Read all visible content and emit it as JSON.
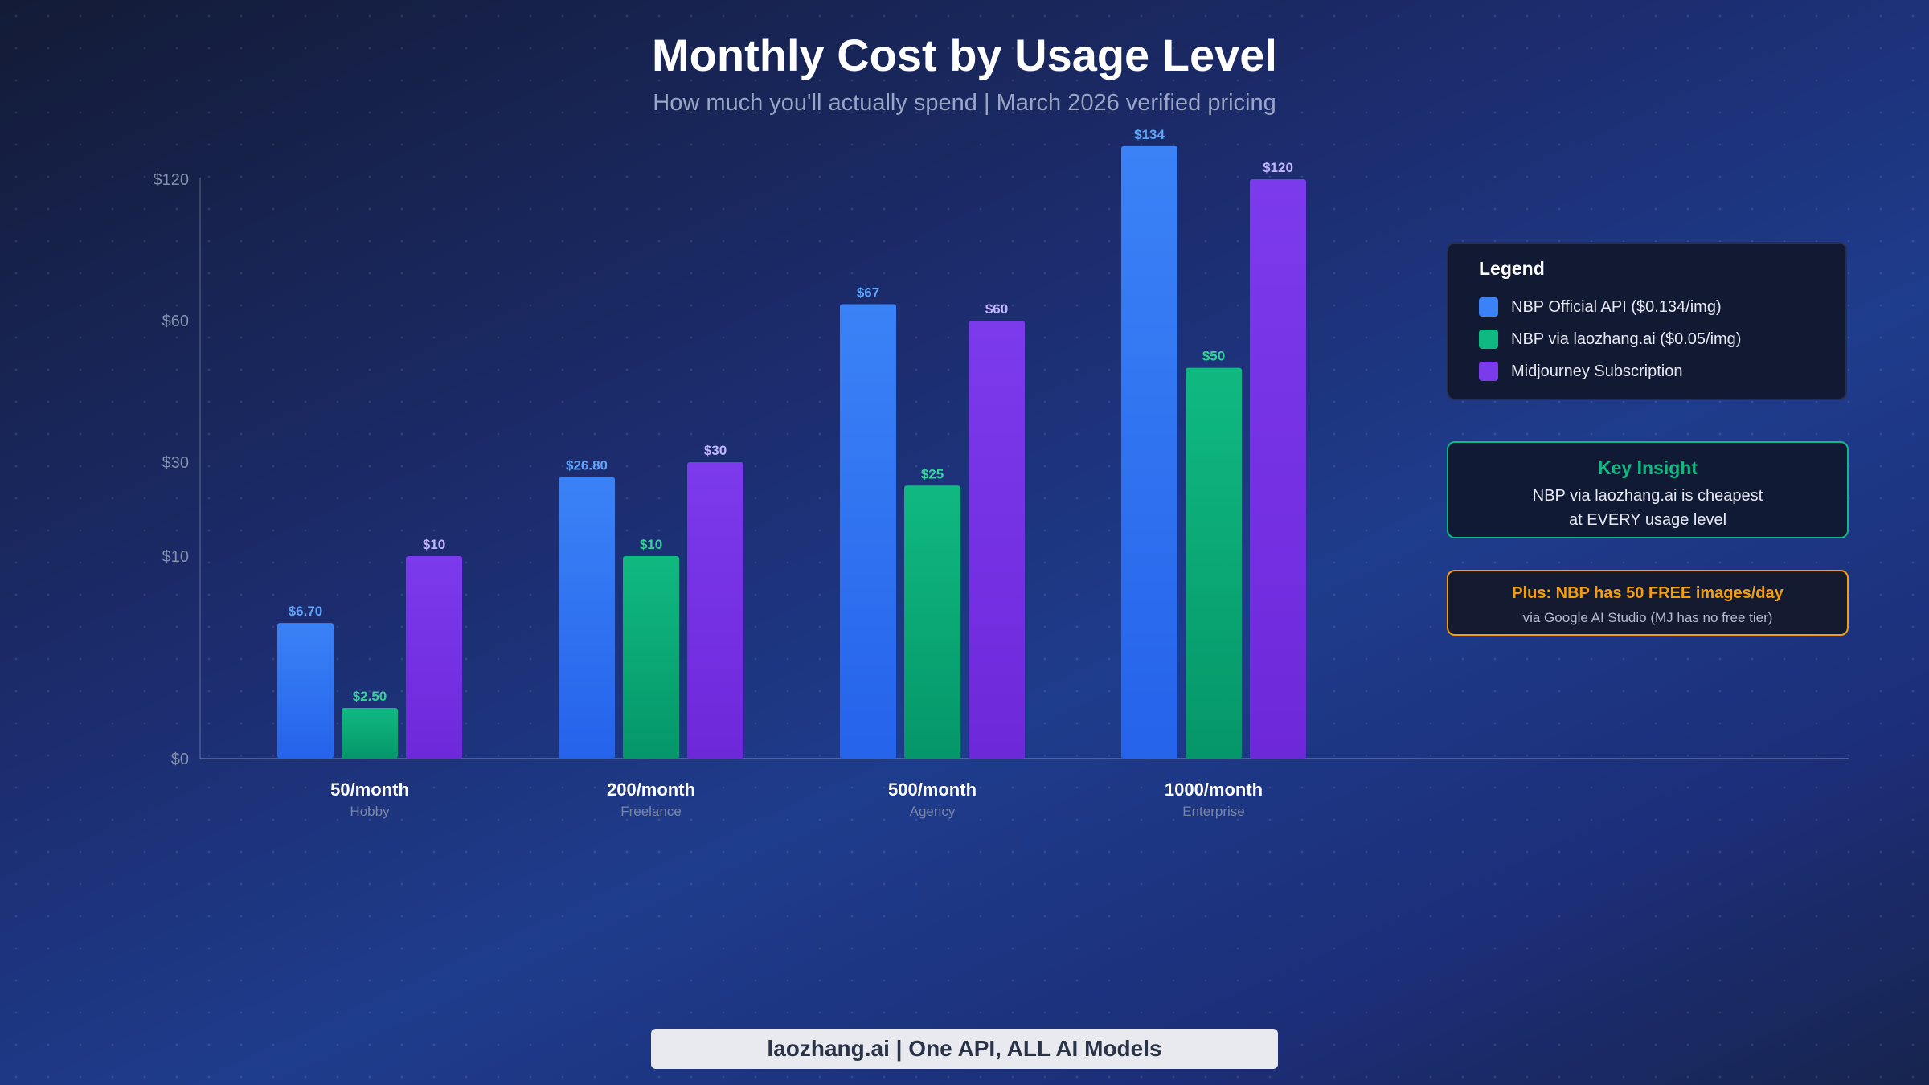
{
  "title": "Monthly Cost by Usage Level",
  "subtitle": "How much you'll actually spend | March 2026 verified pricing",
  "legend": {
    "title": "Legend",
    "items": [
      {
        "label": "NBP Official API ($0.134/img)",
        "color": "#3b82f6"
      },
      {
        "label": "NBP via laozhang.ai ($0.05/img)",
        "color": "#10b981"
      },
      {
        "label": "Midjourney Subscription",
        "color": "#7c3aed"
      }
    ]
  },
  "insight": {
    "title": "Key Insight",
    "line1": "NBP via laozhang.ai is cheapest",
    "line2": "at EVERY usage level"
  },
  "free_tier": {
    "title": "Plus: NBP has 50 FREE images/day",
    "subtitle": "via Google AI Studio (MJ has no free tier)"
  },
  "footer": "laozhang.ai | One API, ALL AI Models",
  "colors": {
    "official_top": "#3b82f6",
    "official_bottom": "#2563eb",
    "laozhang_top": "#10b981",
    "laozhang_bottom": "#059669",
    "midjourney_top": "#7c3aed",
    "midjourney_bottom": "#6d28d9",
    "label_official": "#60a5fa",
    "label_laozhang": "#34d399",
    "label_midjourney": "#c4b5fd"
  },
  "chart_data": {
    "type": "bar",
    "yscale": "nonlinear",
    "categories": [
      "50/month",
      "200/month",
      "500/month",
      "1000/month"
    ],
    "category_sublabels": [
      "Hobby",
      "Freelance",
      "Agency",
      "Enterprise"
    ],
    "y_ticks": [
      {
        "value": 0,
        "label": "$0"
      },
      {
        "value": 10,
        "label": "$10"
      },
      {
        "value": 30,
        "label": "$30"
      },
      {
        "value": 60,
        "label": "$60"
      },
      {
        "value": 120,
        "label": "$120"
      }
    ],
    "ylim": [
      0,
      134
    ],
    "grid": false,
    "legend_position": "right",
    "series": [
      {
        "name": "NBP Official API ($0.134/img)",
        "values": [
          6.7,
          26.8,
          67,
          134
        ],
        "labels": [
          "$6.70",
          "$26.80",
          "$67",
          "$134"
        ]
      },
      {
        "name": "NBP via laozhang.ai ($0.05/img)",
        "values": [
          2.5,
          10,
          25,
          50
        ],
        "labels": [
          "$2.50",
          "$10",
          "$25",
          "$50"
        ]
      },
      {
        "name": "Midjourney Subscription",
        "values": [
          10,
          30,
          60,
          120
        ],
        "labels": [
          "$10",
          "$30",
          "$60",
          "$120"
        ]
      }
    ]
  }
}
